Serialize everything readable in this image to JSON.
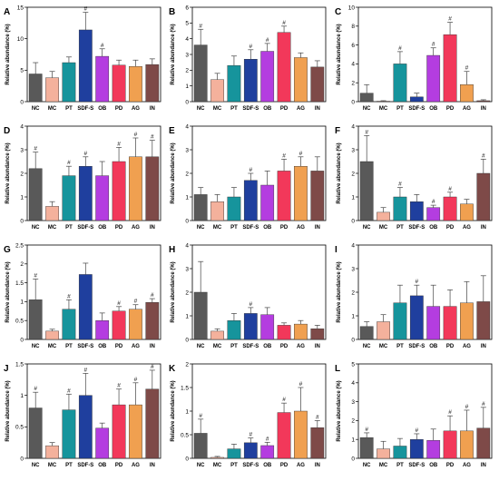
{
  "ylabel": "Relative abundance (%)",
  "categories": [
    "NC",
    "MC",
    "PT",
    "SDF-S",
    "OB",
    "PD",
    "AG",
    "IN"
  ],
  "colors": [
    "#595959",
    "#f4b19c",
    "#16949c",
    "#1f3f9e",
    "#b43de0",
    "#f2385a",
    "#f0a050",
    "#7e4a48"
  ],
  "chart_data": [
    {
      "type": "bar",
      "panel": "A",
      "ylim": [
        0,
        15
      ],
      "yticks": [
        0,
        5,
        10,
        15
      ],
      "values": [
        4.4,
        3.8,
        6.2,
        11.4,
        7.2,
        5.8,
        5.6,
        5.9
      ],
      "errors": [
        1.8,
        1.0,
        0.9,
        2.8,
        1.2,
        0.8,
        1.0,
        0.9
      ],
      "marks": [
        "",
        "",
        "",
        "#",
        "#",
        "",
        "",
        ""
      ]
    },
    {
      "type": "bar",
      "panel": "B",
      "ylim": [
        0,
        6
      ],
      "yticks": [
        0,
        1,
        2,
        3,
        4,
        5,
        6
      ],
      "values": [
        3.6,
        1.4,
        2.3,
        2.7,
        3.2,
        4.4,
        2.8,
        2.2
      ],
      "errors": [
        1.0,
        0.4,
        0.6,
        0.6,
        0.5,
        0.4,
        0.3,
        0.4
      ],
      "marks": [
        "#",
        "",
        "",
        "#",
        "#",
        "#",
        "",
        ""
      ]
    },
    {
      "type": "bar",
      "panel": "C",
      "ylim": [
        0,
        10
      ],
      "yticks": [
        0,
        2,
        4,
        6,
        8,
        10
      ],
      "values": [
        0.9,
        0.05,
        4.0,
        0.5,
        4.9,
        7.1,
        1.8,
        0.1
      ],
      "errors": [
        0.9,
        0.05,
        1.3,
        0.4,
        0.8,
        1.3,
        1.4,
        0.1
      ],
      "marks": [
        "",
        "",
        "#",
        "",
        "#",
        "#",
        "#",
        ""
      ]
    },
    {
      "type": "bar",
      "panel": "D",
      "ylim": [
        0,
        4
      ],
      "yticks": [
        0,
        1,
        2,
        3,
        4
      ],
      "values": [
        2.2,
        0.6,
        1.9,
        2.3,
        1.9,
        2.5,
        2.7,
        2.7
      ],
      "errors": [
        0.7,
        0.2,
        0.4,
        0.4,
        0.6,
        0.6,
        0.8,
        0.7
      ],
      "marks": [
        "#",
        "",
        "#",
        "#",
        "",
        "#",
        "#",
        "#"
      ]
    },
    {
      "type": "bar",
      "panel": "E",
      "ylim": [
        0,
        4
      ],
      "yticks": [
        0,
        1,
        2,
        3,
        4
      ],
      "values": [
        1.1,
        0.8,
        1.0,
        1.7,
        1.5,
        2.1,
        2.3,
        2.1
      ],
      "errors": [
        0.3,
        0.3,
        0.4,
        0.3,
        0.6,
        0.5,
        0.4,
        0.6
      ],
      "marks": [
        "",
        "",
        "",
        "#",
        "",
        "#",
        "#",
        ""
      ]
    },
    {
      "type": "bar",
      "panel": "F",
      "ylim": [
        0,
        4
      ],
      "yticks": [
        0,
        1,
        2,
        3,
        4
      ],
      "values": [
        2.5,
        0.35,
        1.0,
        0.8,
        0.55,
        1.0,
        0.7,
        2.0
      ],
      "errors": [
        1.1,
        0.2,
        0.4,
        0.3,
        0.1,
        0.2,
        0.2,
        0.6
      ],
      "marks": [
        "#",
        "",
        "#",
        "",
        "#",
        "#",
        "",
        "#"
      ]
    },
    {
      "type": "bar",
      "panel": "G",
      "ylim": [
        0,
        2.5
      ],
      "yticks": [
        0,
        0.5,
        1.0,
        1.5,
        2.0,
        2.5
      ],
      "values": [
        1.05,
        0.22,
        0.8,
        1.72,
        0.5,
        0.75,
        0.8,
        0.98
      ],
      "errors": [
        0.55,
        0.05,
        0.25,
        0.3,
        0.2,
        0.12,
        0.12,
        0.1
      ],
      "marks": [
        "#",
        "",
        "#",
        "",
        "",
        "#",
        "#",
        "#"
      ]
    },
    {
      "type": "bar",
      "panel": "H",
      "ylim": [
        0,
        4
      ],
      "yticks": [
        0,
        1,
        2,
        3,
        4
      ],
      "values": [
        2.0,
        0.35,
        0.8,
        1.1,
        1.05,
        0.6,
        0.65,
        0.45
      ],
      "errors": [
        1.3,
        0.1,
        0.3,
        0.25,
        0.3,
        0.1,
        0.15,
        0.15
      ],
      "marks": [
        "",
        "",
        "",
        "#",
        "",
        "",
        "",
        ""
      ]
    },
    {
      "type": "bar",
      "panel": "I",
      "ylim": [
        0,
        4
      ],
      "yticks": [
        0,
        1,
        2,
        3,
        4
      ],
      "values": [
        0.55,
        0.75,
        1.55,
        1.85,
        1.4,
        1.4,
        1.55,
        1.6
      ],
      "errors": [
        0.2,
        0.3,
        0.75,
        0.45,
        0.9,
        0.7,
        0.9,
        1.1
      ],
      "marks": [
        "",
        "",
        "",
        "#",
        "",
        "",
        "",
        ""
      ]
    },
    {
      "type": "bar",
      "panel": "J",
      "ylim": [
        0,
        1.5
      ],
      "yticks": [
        0,
        0.5,
        1.0,
        1.5
      ],
      "values": [
        0.8,
        0.2,
        0.77,
        1.0,
        0.48,
        0.85,
        0.85,
        1.1
      ],
      "errors": [
        0.25,
        0.05,
        0.25,
        0.35,
        0.08,
        0.25,
        0.35,
        0.3
      ],
      "marks": [
        "#",
        "",
        "#",
        "#",
        "",
        "#",
        "#",
        "#"
      ]
    },
    {
      "type": "bar",
      "panel": "K",
      "ylim": [
        0,
        2.0
      ],
      "yticks": [
        0,
        0.5,
        1.0,
        1.5,
        2.0
      ],
      "values": [
        0.53,
        0.02,
        0.2,
        0.33,
        0.27,
        0.97,
        1.0,
        0.65
      ],
      "errors": [
        0.3,
        0.02,
        0.1,
        0.1,
        0.07,
        0.2,
        0.5,
        0.15
      ],
      "marks": [
        "#",
        "",
        "",
        "#",
        "#",
        "#",
        "#",
        "#"
      ]
    },
    {
      "type": "bar",
      "panel": "L",
      "ylim": [
        0,
        5
      ],
      "yticks": [
        0,
        1,
        2,
        3,
        4,
        5
      ],
      "values": [
        1.1,
        0.5,
        0.65,
        1.0,
        0.95,
        1.45,
        1.45,
        1.6
      ],
      "errors": [
        0.25,
        0.4,
        0.4,
        0.3,
        0.6,
        0.8,
        1.1,
        1.1
      ],
      "marks": [
        "#",
        "",
        "",
        "#",
        "",
        "#",
        "#",
        "#"
      ]
    }
  ]
}
